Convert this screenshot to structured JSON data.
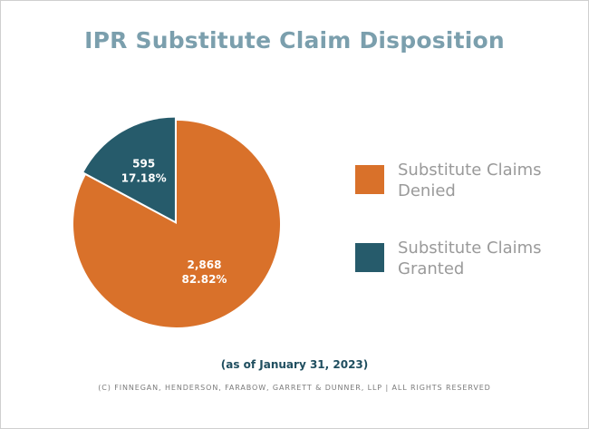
{
  "title": "IPR Substitute Claim Disposition",
  "chart_data": {
    "type": "pie",
    "title": "IPR Substitute Claim Disposition",
    "slices": [
      {
        "name": "Substitute Claims Denied",
        "value": 2868,
        "value_label": "2,868",
        "percent_label": "82.82%",
        "color": "#d9712a"
      },
      {
        "name": "Substitute Claims Granted",
        "value": 595,
        "value_label": "595",
        "percent_label": "17.18%",
        "color": "#265b6b"
      }
    ],
    "legend_position": "right"
  },
  "legend": [
    {
      "line1": "Substitute Claims",
      "line2": "Denied",
      "color": "#d9712a"
    },
    {
      "line1": "Substitute Claims",
      "line2": "Granted",
      "color": "#265b6b"
    }
  ],
  "note": "(as of January 31, 2023)",
  "copyright": "(C) FINNEGAN, HENDERSON, FARABOW, GARRETT & DUNNER, LLP | ALL RIGHTS RESERVED"
}
